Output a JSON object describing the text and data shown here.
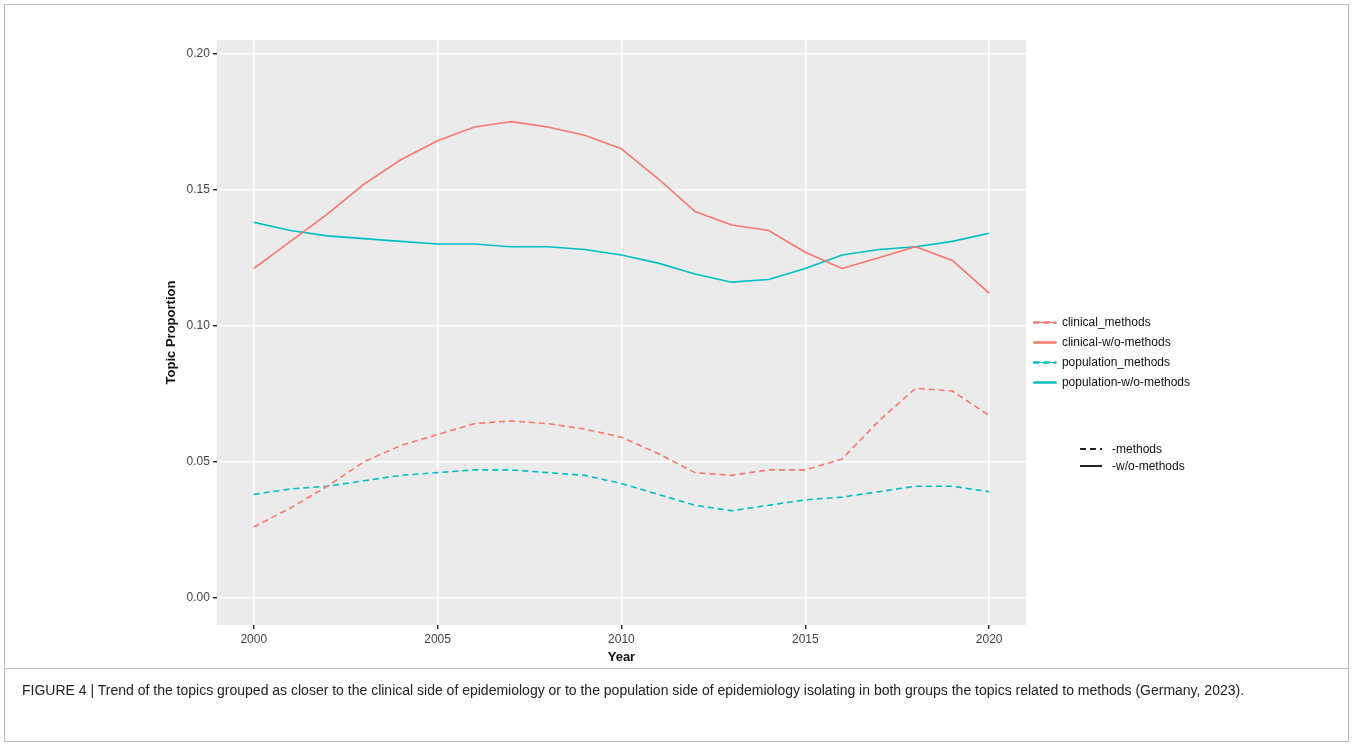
{
  "chart_data": {
    "type": "line",
    "xlabel": "Year",
    "ylabel": "Topic Proportion",
    "x": [
      2000,
      2001,
      2002,
      2003,
      2004,
      2005,
      2006,
      2007,
      2008,
      2009,
      2010,
      2011,
      2012,
      2013,
      2014,
      2015,
      2016,
      2017,
      2018,
      2019,
      2020
    ],
    "series": [
      {
        "name": "clinical_methods",
        "color": "#f8766d",
        "line_style": "dashed",
        "values": [
          0.026,
          0.033,
          0.041,
          0.05,
          0.056,
          0.06,
          0.064,
          0.065,
          0.064,
          0.062,
          0.059,
          0.053,
          0.046,
          0.045,
          0.047,
          0.047,
          0.051,
          0.065,
          0.077,
          0.076,
          0.067
        ]
      },
      {
        "name": "clinical-w/o-methods",
        "color": "#f8766d",
        "line_style": "solid",
        "values": [
          0.121,
          0.131,
          0.141,
          0.152,
          0.161,
          0.168,
          0.173,
          0.175,
          0.173,
          0.17,
          0.165,
          0.154,
          0.142,
          0.137,
          0.135,
          0.127,
          0.121,
          0.125,
          0.129,
          0.124,
          0.112
        ]
      },
      {
        "name": "population_methods",
        "color": "#00bfc4",
        "line_style": "dashed",
        "values": [
          0.038,
          0.04,
          0.041,
          0.043,
          0.045,
          0.046,
          0.047,
          0.047,
          0.046,
          0.045,
          0.042,
          0.038,
          0.034,
          0.032,
          0.034,
          0.036,
          0.037,
          0.039,
          0.041,
          0.041,
          0.039
        ]
      },
      {
        "name": "population-w/o-methods",
        "color": "#00bfc4",
        "line_style": "solid",
        "values": [
          0.138,
          0.135,
          0.133,
          0.132,
          0.131,
          0.13,
          0.13,
          0.129,
          0.129,
          0.128,
          0.126,
          0.123,
          0.119,
          0.116,
          0.117,
          0.121,
          0.126,
          0.128,
          0.129,
          0.131,
          0.134
        ]
      }
    ],
    "xlim": [
      1999,
      2021
    ],
    "xticks": [
      2000,
      2005,
      2010,
      2015,
      2020
    ],
    "ylim": [
      -0.01,
      0.205
    ],
    "yticks": [
      {
        "value": 0,
        "label": "0.00"
      },
      {
        "value": 0.05,
        "label": "0.05"
      },
      {
        "value": 0.1,
        "label": "0.10"
      },
      {
        "value": 0.15,
        "label": "0.15"
      },
      {
        "value": 0.2,
        "label": "0.20"
      }
    ],
    "grid": true,
    "legend": "right",
    "marker": "none",
    "annotations": [
      "-methods",
      "-w/o-methods",
      "FIGURE 4 | Trend of the topics grouped as closer to the clinical side of epidemiology or to the population side of epidemiology isolating in both groups the topics related to methods (Germany, 2023)."
    ]
  }
}
